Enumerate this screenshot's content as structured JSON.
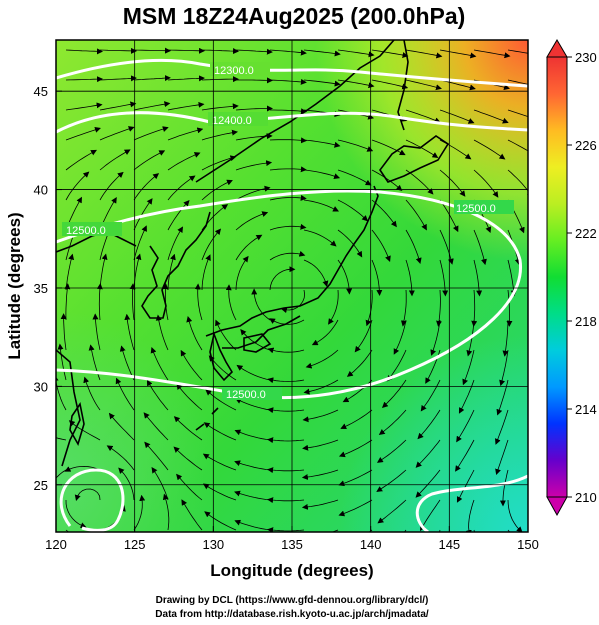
{
  "title": "MSM 18Z24Aug2025 (200.0hPa)",
  "x_axis": {
    "label": "Longitude (degrees)",
    "ticks": [
      "120",
      "125",
      "130",
      "135",
      "140",
      "145",
      "150"
    ],
    "range": [
      120,
      150
    ]
  },
  "y_axis": {
    "label": "Latitude  (degrees)",
    "ticks": [
      "25",
      "30",
      "35",
      "40",
      "45"
    ],
    "range": [
      22.6,
      47.6
    ]
  },
  "colorbar": {
    "labels": [
      "230",
      "226",
      "222",
      "218",
      "214",
      "210"
    ],
    "range": [
      210,
      230
    ],
    "colors": [
      "#cc00aa",
      "#6600cc",
      "#0033ff",
      "#0099ff",
      "#00ccdd",
      "#00dd88",
      "#11dd33",
      "#66ee22",
      "#bbee22",
      "#eeee22",
      "#ffbb22",
      "#ff6633",
      "#ee3333"
    ]
  },
  "contours": [
    {
      "label": "12300.0"
    },
    {
      "label": "12400.0"
    },
    {
      "label": "12500.0"
    },
    {
      "label": "12500.0"
    },
    {
      "label": "12500.0"
    }
  ],
  "credits": {
    "line1": "Drawing by DCL (https://www.gfd-dennou.org/library/dcl/)",
    "line2": "Data from http://database.rish.kyoto-u.ac.jp/arch/jmadata/"
  },
  "chart_data": {
    "type": "heatmap",
    "title": "MSM 18Z24Aug2025 (200.0hPa)",
    "xlabel": "Longitude (degrees)",
    "ylabel": "Latitude  (degrees)",
    "xlim": [
      120,
      150
    ],
    "ylim": [
      22.6,
      47.6
    ],
    "colorbar_range": [
      210,
      230
    ],
    "contour_levels": [
      12300.0,
      12400.0,
      12500.0
    ],
    "grid": true
  }
}
